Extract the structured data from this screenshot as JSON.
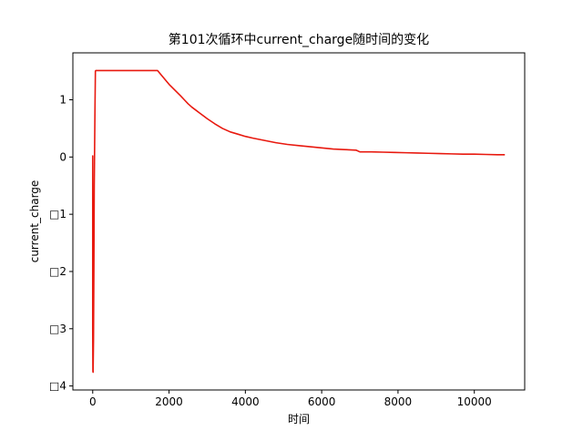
{
  "chart_data": {
    "type": "line",
    "title": "第101次循环中current_charge随时间的变化",
    "xlabel": "时间",
    "ylabel": "current_charge",
    "xlim": [
      -520,
      11320
    ],
    "ylim": [
      -4.07,
      1.82
    ],
    "x_ticks": [
      {
        "value": 0,
        "label": "0"
      },
      {
        "value": 2000,
        "label": "2000"
      },
      {
        "value": 4000,
        "label": "4000"
      },
      {
        "value": 6000,
        "label": "6000"
      },
      {
        "value": 8000,
        "label": "8000"
      },
      {
        "value": 10000,
        "label": "10000"
      }
    ],
    "y_ticks": [
      {
        "value": 1,
        "label": "1"
      },
      {
        "value": 0,
        "label": "0"
      },
      {
        "value": -1,
        "label": "□1"
      },
      {
        "value": -2,
        "label": "□2"
      },
      {
        "value": -3,
        "label": "□3"
      },
      {
        "value": -4,
        "label": "□4"
      }
    ],
    "grid": false,
    "series": [
      {
        "color": "#e8190f",
        "x": [
          0,
          0,
          0,
          5,
          10,
          20,
          30,
          40,
          50,
          60,
          70,
          80,
          1700,
          1850,
          2000,
          2150,
          2300,
          2400,
          2500,
          2600,
          2700,
          2800,
          3000,
          3200,
          3400,
          3600,
          3800,
          4000,
          4200,
          4500,
          4800,
          5100,
          5400,
          5700,
          6000,
          6300,
          6600,
          6900,
          7000,
          7300,
          7600,
          7900,
          8200,
          8500,
          8800,
          9100,
          9400,
          9700,
          10000,
          10300,
          10600,
          10800
        ],
        "y": [
          0,
          0.02,
          -3.0,
          -3.74,
          -3.76,
          -3.2,
          -2.0,
          -0.5,
          0.2,
          0.9,
          1.5,
          1.51,
          1.51,
          1.39,
          1.27,
          1.17,
          1.07,
          1.0,
          0.93,
          0.87,
          0.82,
          0.77,
          0.67,
          0.58,
          0.5,
          0.44,
          0.4,
          0.36,
          0.33,
          0.29,
          0.25,
          0.22,
          0.2,
          0.18,
          0.16,
          0.14,
          0.13,
          0.12,
          0.09,
          0.09,
          0.085,
          0.08,
          0.075,
          0.07,
          0.065,
          0.06,
          0.055,
          0.05,
          0.05,
          0.045,
          0.04,
          0.04
        ]
      }
    ]
  }
}
